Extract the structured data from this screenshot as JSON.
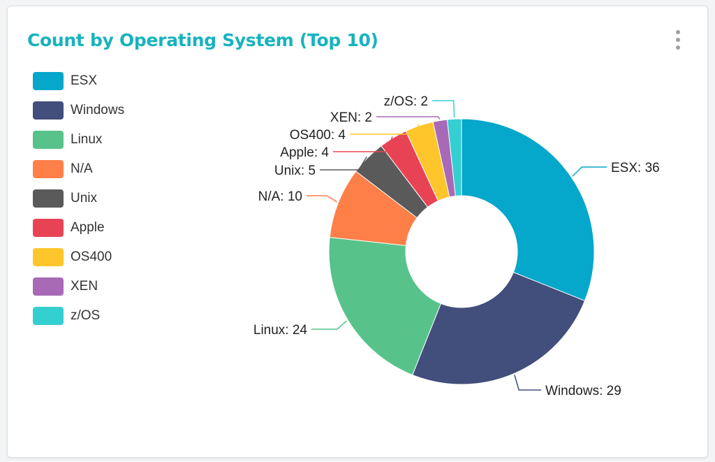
{
  "card": {
    "title": "Count by Operating System (Top 10)",
    "title_color": "#17b3bf",
    "menu_icon": "kebab-menu-icon"
  },
  "chart_data": {
    "type": "pie",
    "donut": true,
    "legend_position": "left",
    "labels": [
      "ESX",
      "Windows",
      "Linux",
      "N/A",
      "Unix",
      "Apple",
      "OS400",
      "XEN",
      "z/OS"
    ],
    "values": [
      36,
      29,
      24,
      10,
      5,
      4,
      4,
      2,
      2
    ],
    "colors": [
      "#05a7cb",
      "#424e7b",
      "#57c38b",
      "#ff7f48",
      "#5a5a5a",
      "#e84355",
      "#ffc62b",
      "#a869b7",
      "#33cfd1"
    ],
    "slice_labels": [
      "ESX: 36",
      "Windows: 29",
      "Linux: 24",
      "N/A: 10",
      "Unix: 5",
      "Apple: 4",
      "OS400: 4",
      "XEN: 2",
      "z/OS: 2"
    ]
  }
}
